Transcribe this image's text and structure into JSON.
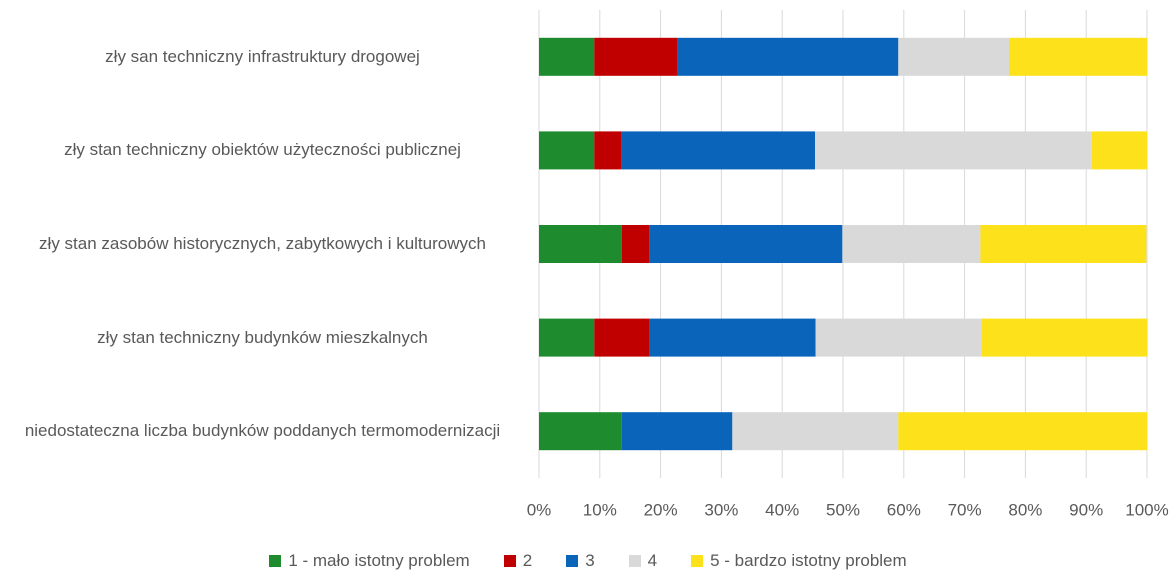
{
  "chart_data": {
    "type": "stacked-bar-horizontal",
    "categories": [
      "zły san techniczny infrastruktury drogowej",
      "zły stan techniczny obiektów użyteczności publicznej",
      "zły stan zasobów historycznych, zabytkowych i kulturowych",
      "zły stan techniczny budynków mieszkalnych",
      "niedostateczna liczba budynków poddanych termomodernizacji"
    ],
    "series": [
      {
        "name": "1 - mało istotny problem",
        "color": "#1e8c2e",
        "values": [
          9.1,
          9.1,
          13.6,
          9.1,
          13.6
        ]
      },
      {
        "name": "2",
        "color": "#c00000",
        "values": [
          13.6,
          4.5,
          4.5,
          9.1,
          0
        ]
      },
      {
        "name": "3",
        "color": "#0a64b9",
        "values": [
          36.4,
          31.8,
          31.8,
          27.3,
          18.2
        ]
      },
      {
        "name": "4",
        "color": "#d9d9d9",
        "values": [
          18.2,
          45.5,
          22.7,
          27.3,
          27.3
        ]
      },
      {
        "name": "5 - bardzo istotny problem",
        "color": "#fde11a",
        "values": [
          22.7,
          9.1,
          27.3,
          27.3,
          40.9
        ]
      }
    ],
    "xlim": [
      0,
      100
    ],
    "xticks": [
      {
        "value": 0,
        "label": "0%"
      },
      {
        "value": 10,
        "label": "10%"
      },
      {
        "value": 20,
        "label": "20%"
      },
      {
        "value": 30,
        "label": "30%"
      },
      {
        "value": 40,
        "label": "40%"
      },
      {
        "value": 50,
        "label": "50%"
      },
      {
        "value": 60,
        "label": "60%"
      },
      {
        "value": 70,
        "label": "70%"
      },
      {
        "value": 80,
        "label": "80%"
      },
      {
        "value": 90,
        "label": "90%"
      },
      {
        "value": 100,
        "label": "100%"
      }
    ],
    "grid": true,
    "legend": "bottom"
  }
}
